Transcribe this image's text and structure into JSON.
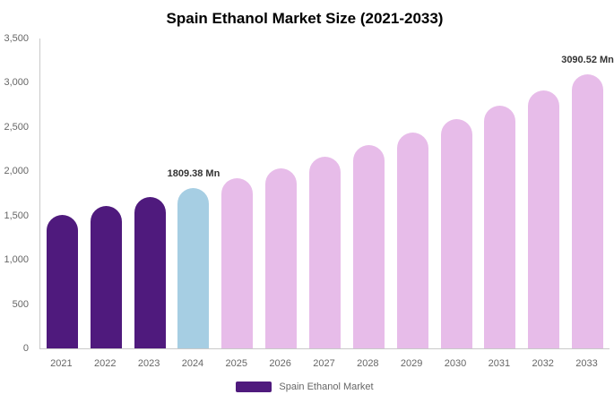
{
  "title": "Spain Ethanol Market Size (2021-2033)",
  "legend": {
    "label": "Spain Ethanol Market"
  },
  "colors": {
    "historical_bar": "#4F1A7D",
    "base_year_bar": "#A6CEE3",
    "forecast_bar": "#E7BCE9",
    "axis_line": "#C9C9C9",
    "axis_text": "#666666",
    "data_label_text": "#333333",
    "title_text": "#000000",
    "legend_swatch": "#4F1A7D"
  },
  "chart_data": {
    "type": "bar",
    "title": "Spain Ethanol Market Size (2021-2033)",
    "categories": [
      "2021",
      "2022",
      "2023",
      "2024",
      "2025",
      "2026",
      "2027",
      "2028",
      "2029",
      "2030",
      "2031",
      "2032",
      "2033"
    ],
    "values": [
      1510,
      1607,
      1705,
      1809.38,
      1920,
      2038,
      2163,
      2296,
      2437,
      2586,
      2745,
      2913,
      3090.52
    ],
    "unit": "Mn",
    "xlabel": "",
    "ylabel": "",
    "ylim": [
      0,
      3500
    ],
    "ytick_interval": 500,
    "ytick_labels": [
      "0",
      "500",
      "1,000",
      "1,500",
      "2,000",
      "2,500",
      "3,000",
      "3,500"
    ],
    "grid": false,
    "legend_position": "bottom",
    "legend_entries": [
      "Spain Ethanol Market"
    ],
    "bar_color_roles": [
      "historical_bar",
      "historical_bar",
      "historical_bar",
      "base_year_bar",
      "forecast_bar",
      "forecast_bar",
      "forecast_bar",
      "forecast_bar",
      "forecast_bar",
      "forecast_bar",
      "forecast_bar",
      "forecast_bar",
      "forecast_bar"
    ],
    "data_labels": [
      {
        "category": "2024",
        "text": "1809.38 Mn"
      },
      {
        "category": "2033",
        "text": "3090.52 Mn"
      }
    ]
  }
}
